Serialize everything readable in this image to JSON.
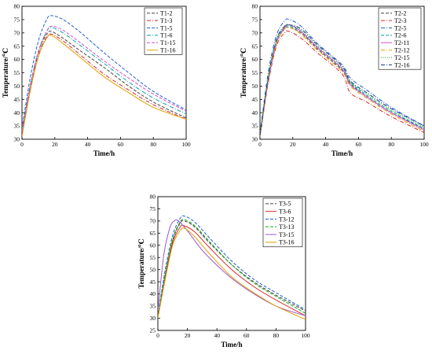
{
  "chart_data": [
    {
      "type": "line",
      "id": "panel-1",
      "xlabel": "Time/h",
      "ylabel": "Temperature/℃",
      "xlim": [
        0,
        100
      ],
      "ylim": [
        30,
        80
      ],
      "xticks": [
        "0",
        "20",
        "40",
        "60",
        "80",
        "100"
      ],
      "yticks": [
        "30",
        "35",
        "40",
        "45",
        "50",
        "55",
        "60",
        "65",
        "70",
        "75",
        "80"
      ],
      "legend_position": "top-right",
      "grid": false,
      "series": [
        {
          "name": "T1-2",
          "color": "#444444",
          "dash": "dash",
          "x": [
            0,
            5,
            10,
            15,
            18,
            25,
            35,
            50,
            65,
            80,
            100
          ],
          "y": [
            33,
            50,
            63,
            69.5,
            70.5,
            68,
            63.5,
            57,
            50,
            44,
            38
          ]
        },
        {
          "name": "T1-3",
          "color": "#d62728",
          "dash": "dashdot",
          "x": [
            0,
            5,
            10,
            15,
            18,
            25,
            35,
            50,
            65,
            80,
            100
          ],
          "y": [
            33,
            49,
            62,
            68.5,
            69.5,
            67,
            62,
            54.5,
            48.5,
            43,
            37.5
          ]
        },
        {
          "name": "T1-5",
          "color": "#1f5fd1",
          "dash": "dash",
          "x": [
            0,
            5,
            10,
            15,
            18,
            25,
            35,
            50,
            65,
            80,
            100
          ],
          "y": [
            34,
            53,
            67,
            75,
            76.5,
            75,
            70.5,
            62.5,
            55,
            48,
            41
          ]
        },
        {
          "name": "T1-6",
          "color": "#00a3a3",
          "dash": "dashdot",
          "x": [
            0,
            5,
            10,
            15,
            18,
            25,
            35,
            50,
            65,
            80,
            100
          ],
          "y": [
            33.5,
            50,
            63,
            70.5,
            72,
            70,
            65.5,
            58.5,
            51.5,
            45.5,
            39.5
          ]
        },
        {
          "name": "T1-15",
          "color": "#d04fd0",
          "dash": "dash",
          "x": [
            0,
            5,
            10,
            15,
            18,
            25,
            35,
            50,
            65,
            80,
            100
          ],
          "y": [
            33,
            50,
            63,
            70.5,
            72.5,
            71,
            66.5,
            59.5,
            53,
            47,
            40.5
          ]
        },
        {
          "name": "T1-16",
          "color": "#e0a000",
          "dash": "solid",
          "x": [
            0,
            5,
            10,
            15,
            18,
            25,
            35,
            50,
            65,
            80,
            100
          ],
          "y": [
            31,
            48,
            61,
            68,
            69,
            66,
            61,
            53.5,
            47.5,
            42,
            37.5
          ]
        }
      ]
    },
    {
      "type": "line",
      "id": "panel-2",
      "xlabel": "Time/h",
      "ylabel": "Temperature/℃",
      "xlim": [
        0,
        100
      ],
      "ylim": [
        30,
        80
      ],
      "xticks": [
        "0",
        "20",
        "40",
        "60",
        "80",
        "100"
      ],
      "yticks": [
        "30",
        "35",
        "40",
        "45",
        "50",
        "55",
        "60",
        "65",
        "70",
        "75",
        "80"
      ],
      "legend_position": "top-right",
      "grid": false,
      "series": [
        {
          "name": "T2-2",
          "color": "#444444",
          "dash": "dash",
          "x": [
            0,
            5,
            10,
            15,
            18,
            25,
            35,
            50,
            55,
            65,
            80,
            100
          ],
          "y": [
            31,
            52,
            66,
            71.5,
            72,
            70,
            64,
            56,
            51,
            46,
            40,
            34
          ]
        },
        {
          "name": "T2-3",
          "color": "#d62728",
          "dash": "dashdot",
          "x": [
            0,
            5,
            10,
            15,
            18,
            25,
            35,
            50,
            55,
            65,
            80,
            100
          ],
          "y": [
            31,
            51,
            65,
            70,
            70.5,
            68,
            62.5,
            54.5,
            47.5,
            44,
            38.5,
            32.5
          ]
        },
        {
          "name": "T2-5",
          "color": "#1f5fd1",
          "dash": "dashdot",
          "x": [
            0,
            5,
            10,
            15,
            18,
            25,
            35,
            50,
            55,
            65,
            80,
            100
          ],
          "y": [
            32,
            55,
            69,
            74.5,
            75,
            72.5,
            66,
            58,
            53,
            48.5,
            42,
            35
          ]
        },
        {
          "name": "T2-6",
          "color": "#00a3a3",
          "dash": "dash",
          "x": [
            0,
            5,
            10,
            15,
            18,
            25,
            35,
            50,
            55,
            65,
            80,
            100
          ],
          "y": [
            31.5,
            53,
            67,
            72,
            72.5,
            70.5,
            64.5,
            56.5,
            51.5,
            46.5,
            40.5,
            34
          ]
        },
        {
          "name": "T2-11",
          "color": "#d04fd0",
          "dash": "solid",
          "x": [
            0,
            5,
            10,
            15,
            18,
            25,
            35,
            50,
            55,
            65,
            80,
            100
          ],
          "y": [
            31,
            52,
            66,
            72,
            73,
            70.5,
            64.5,
            56.5,
            50.5,
            46,
            40,
            33.5
          ]
        },
        {
          "name": "T2-12",
          "color": "#e0a000",
          "dash": "dashdot",
          "x": [
            0,
            5,
            10,
            15,
            18,
            25,
            35,
            50,
            55,
            65,
            80,
            100
          ],
          "y": [
            31,
            52,
            66,
            71.5,
            72,
            69.5,
            63.5,
            55.5,
            50,
            45.5,
            39.5,
            33
          ]
        },
        {
          "name": "T2-15",
          "color": "#1aa81a",
          "dash": "dot",
          "x": [
            0,
            5,
            10,
            15,
            18,
            25,
            35,
            50,
            55,
            65,
            80,
            100
          ],
          "y": [
            31.5,
            53,
            67,
            72.5,
            73,
            71,
            65,
            57,
            51.5,
            47,
            41,
            34.5
          ]
        },
        {
          "name": "T2-16",
          "color": "#1f3a8a",
          "dash": "dashdot",
          "x": [
            0,
            5,
            10,
            15,
            18,
            25,
            35,
            50,
            55,
            65,
            80,
            100
          ],
          "y": [
            31.5,
            53,
            67.5,
            72.5,
            73,
            71.5,
            65.5,
            57.5,
            52,
            47.5,
            41.5,
            35
          ]
        }
      ]
    },
    {
      "type": "line",
      "id": "panel-3",
      "xlabel": "Time/h",
      "ylabel": "Temperature/℃",
      "xlim": [
        0,
        100
      ],
      "ylim": [
        25,
        80
      ],
      "xticks": [
        "0",
        "20",
        "40",
        "60",
        "80",
        "100"
      ],
      "yticks": [
        "25",
        "30",
        "35",
        "40",
        "45",
        "50",
        "55",
        "60",
        "65",
        "70",
        "75",
        "80"
      ],
      "legend_position": "top-right",
      "grid": false,
      "series": [
        {
          "name": "T3-5",
          "color": "#444444",
          "dash": "dash",
          "x": [
            0,
            5,
            10,
            15,
            18,
            25,
            35,
            50,
            65,
            80,
            100
          ],
          "y": [
            30,
            48,
            62,
            69,
            70,
            67.5,
            61,
            52,
            45,
            39.5,
            33
          ]
        },
        {
          "name": "T3-6",
          "color": "#d62728",
          "dash": "solid",
          "x": [
            0,
            5,
            10,
            15,
            18,
            25,
            35,
            50,
            65,
            80,
            100
          ],
          "y": [
            30.5,
            47,
            61,
            67.5,
            68,
            65.5,
            59,
            50,
            43,
            37.5,
            31
          ]
        },
        {
          "name": "T3-12",
          "color": "#1f5fd1",
          "dash": "dash",
          "x": [
            0,
            5,
            10,
            15,
            18,
            25,
            35,
            50,
            65,
            80,
            100
          ],
          "y": [
            31,
            50,
            64,
            71,
            72,
            69.5,
            63,
            53.5,
            46,
            40.5,
            33.5
          ]
        },
        {
          "name": "T3-13",
          "color": "#1aa81a",
          "dash": "dash",
          "x": [
            0,
            5,
            10,
            15,
            18,
            25,
            35,
            50,
            65,
            80,
            100
          ],
          "y": [
            30.5,
            48,
            62.5,
            69.5,
            70.5,
            68,
            61.5,
            52,
            44.5,
            39,
            32
          ]
        },
        {
          "name": "T3-15",
          "color": "#9b59d0",
          "dash": "solid",
          "x": [
            0,
            4,
            8,
            11,
            14,
            20,
            30,
            45,
            60,
            80,
            100
          ],
          "y": [
            33,
            56,
            67,
            70,
            70,
            66,
            58,
            49,
            42,
            35,
            31
          ]
        },
        {
          "name": "T3-16",
          "color": "#e0a000",
          "dash": "solid",
          "x": [
            0,
            5,
            10,
            15,
            18,
            25,
            35,
            50,
            65,
            80,
            100
          ],
          "y": [
            30,
            46,
            60,
            66,
            67,
            63.5,
            56.5,
            47,
            40.5,
            35,
            29.5
          ]
        }
      ]
    }
  ]
}
